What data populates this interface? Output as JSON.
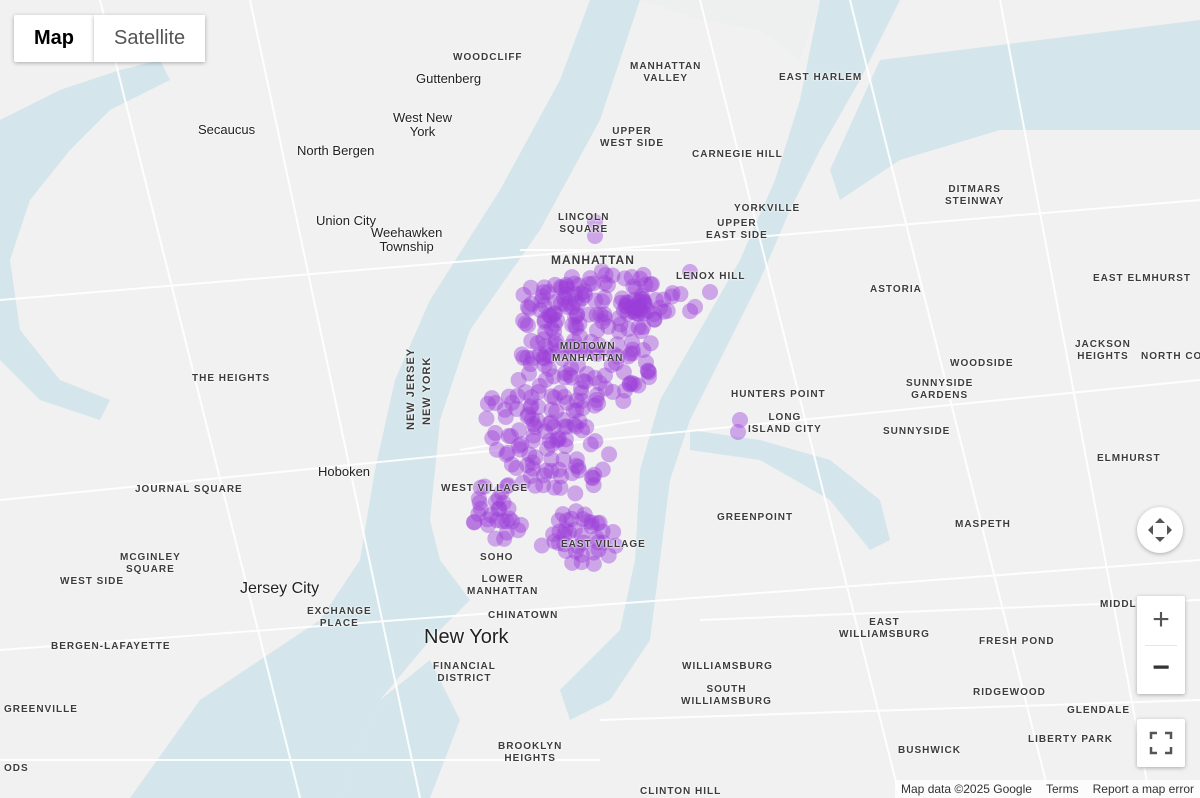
{
  "map_type_control": {
    "map_label": "Map",
    "satellite_label": "Satellite",
    "selected": "Map"
  },
  "footer": {
    "attribution": "Map data ©2025 Google",
    "terms": "Terms",
    "report": "Report a map error"
  },
  "controls": {
    "zoom_in": "+",
    "zoom_out": "−",
    "icons": [
      "camera-control-icon",
      "zoom-in-icon",
      "zoom-out-icon",
      "fullscreen-icon"
    ]
  },
  "colors": {
    "water": "#d4e6ec",
    "land": "#f1f1f1",
    "heat_points": "#9b3fd8"
  },
  "cities": [
    "New York",
    "Jersey City",
    "Hoboken",
    "Secaucus",
    "North Bergen",
    "Union City",
    "Weehawken\nTownship",
    "West New\nYork",
    "Guttenberg",
    "MANHATTAN"
  ],
  "neighborhoods": [
    "WOODCLIFF",
    "MANHATTAN\nVALLEY",
    "EAST HARLEM",
    "UPPER\nWEST SIDE",
    "CARNEGIE HILL",
    "DITMARS\nSTEINWAY",
    "LINCOLN\nSQUARE",
    "YORKVILLE",
    "UPPER\nEAST SIDE",
    "LENOX HILL",
    "ASTORIA",
    "EAST ELMHURST",
    "MIDTOWN\nMANHATTAN",
    "JACKSON\nHEIGHTS",
    "NORTH CORONA",
    "WOODSIDE",
    "THE HEIGHTS",
    "HUNTERS POINT",
    "SUNNYSIDE\nGARDENS",
    "LONG\nISLAND CITY",
    "SUNNYSIDE",
    "ELMHURST",
    "JOURNAL SQUARE",
    "WEST VILLAGE",
    "GREENPOINT",
    "MASPETH",
    "EAST VILLAGE",
    "SOHO",
    "MCGINLEY\nSQUARE",
    "WEST SIDE",
    "LOWER\nMANHATTAN",
    "CHINATOWN",
    "EXCHANGE\nPLACE",
    "EAST\nWILLIAMSBURG",
    "FRESH POND",
    "BERGEN-LAFAYETTE",
    "FINANCIAL\nDISTRICT",
    "WILLIAMSBURG",
    "SOUTH\nWILLIAMSBURG",
    "RIDGEWOOD",
    "GLENDALE",
    "GREENVILLE",
    "LIBERTY PARK",
    "BUSHWICK",
    "BROOKLYN\nHEIGHTS",
    "CLINTON HILL",
    "MIDDLE",
    "ODS"
  ],
  "state_line": {
    "nj": "NEW JERSEY",
    "ny": "NEW YORK"
  }
}
